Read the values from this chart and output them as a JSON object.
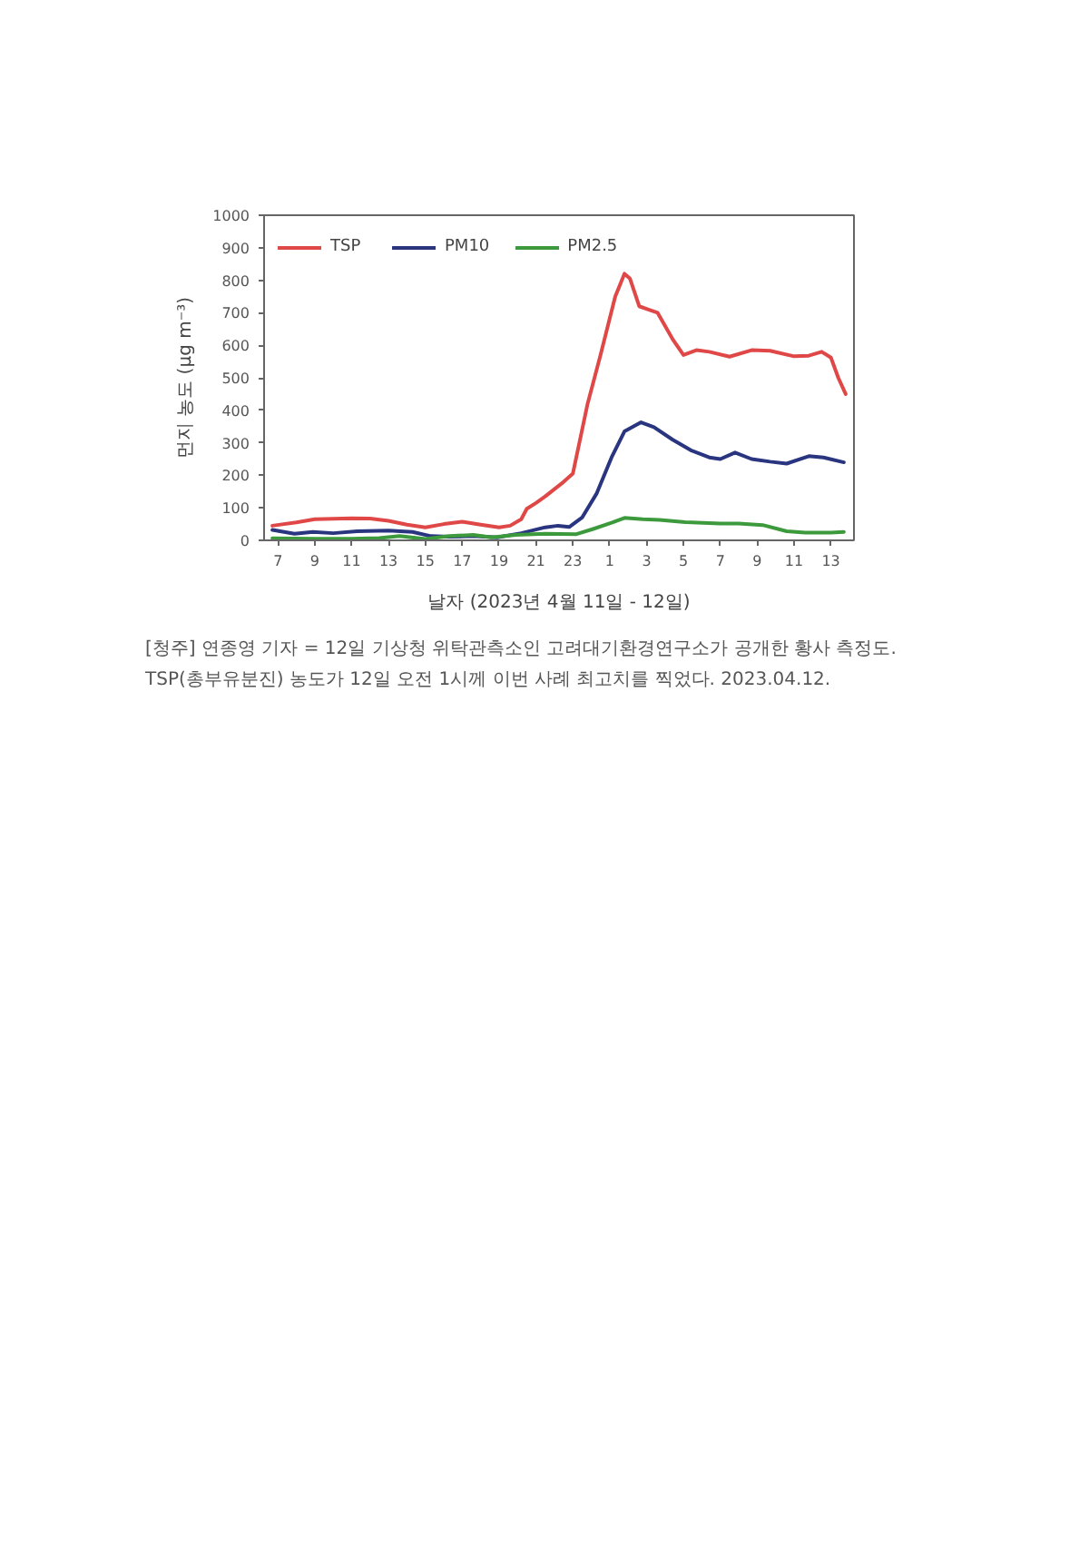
{
  "chart_data": {
    "type": "line",
    "xlabel": "날자 (2023년 4월 11일 - 12일)",
    "ylabel": "먼지 농도 (μg m⁻³)",
    "xlim": [
      "2023-04-11T06:15",
      "2023-04-12T14:15"
    ],
    "ylim": [
      0,
      1000
    ],
    "xticks": [
      {
        "value": "2023-04-11T07:00",
        "label": "7"
      },
      {
        "value": "2023-04-11T09:00",
        "label": "9"
      },
      {
        "value": "2023-04-11T11:00",
        "label": "11"
      },
      {
        "value": "2023-04-11T13:00",
        "label": "13"
      },
      {
        "value": "2023-04-11T15:00",
        "label": "15"
      },
      {
        "value": "2023-04-11T17:00",
        "label": "17"
      },
      {
        "value": "2023-04-11T19:00",
        "label": "19"
      },
      {
        "value": "2023-04-11T21:00",
        "label": "21"
      },
      {
        "value": "2023-04-11T23:00",
        "label": "23"
      },
      {
        "value": "2023-04-12T01:00",
        "label": "1"
      },
      {
        "value": "2023-04-12T03:00",
        "label": "3"
      },
      {
        "value": "2023-04-12T05:00",
        "label": "5"
      },
      {
        "value": "2023-04-12T07:00",
        "label": "7"
      },
      {
        "value": "2023-04-12T09:00",
        "label": "9"
      },
      {
        "value": "2023-04-12T11:00",
        "label": "11"
      },
      {
        "value": "2023-04-12T13:00",
        "label": "13"
      }
    ],
    "yticks": [
      0,
      100,
      200,
      300,
      400,
      500,
      600,
      700,
      800,
      900,
      1000
    ],
    "legend": "top left",
    "series": [
      {
        "name": "TSP",
        "color": "#e04848",
        "x": [
          "2023-04-11T06:42",
          "2023-04-11T08:00",
          "2023-04-11T09:00",
          "2023-04-11T11:00",
          "2023-04-11T12:00",
          "2023-04-11T13:00",
          "2023-04-11T14:00",
          "2023-04-11T15:00",
          "2023-04-11T16:00",
          "2023-04-11T17:00",
          "2023-04-11T18:00",
          "2023-04-11T19:00",
          "2023-04-11T19:36",
          "2023-04-11T20:12",
          "2023-04-11T20:30",
          "2023-04-11T21:00",
          "2023-04-11T21:30",
          "2023-04-11T22:30",
          "2023-04-11T23:00",
          "2023-04-11T23:48",
          "2023-04-12T00:30",
          "2023-04-12T01:18",
          "2023-04-12T01:48",
          "2023-04-12T02:06",
          "2023-04-12T02:36",
          "2023-04-12T03:06",
          "2023-04-12T03:36",
          "2023-04-12T04:24",
          "2023-04-12T05:00",
          "2023-04-12T05:42",
          "2023-04-12T06:24",
          "2023-04-12T07:30",
          "2023-04-12T08:42",
          "2023-04-12T09:42",
          "2023-04-12T11:00",
          "2023-04-12T11:48",
          "2023-04-12T12:30",
          "2023-04-12T13:00",
          "2023-04-12T13:24",
          "2023-04-12T13:48"
        ],
        "values": [
          45,
          55,
          65,
          68,
          67,
          60,
          48,
          40,
          50,
          57,
          48,
          40,
          45,
          65,
          97,
          115,
          135,
          180,
          205,
          420,
          570,
          750,
          820,
          805,
          720,
          710,
          700,
          620,
          570,
          585,
          580,
          565,
          585,
          583,
          566,
          568,
          580,
          562,
          500,
          450
        ]
      },
      {
        "name": "PM10",
        "color": "#2a3580",
        "x": [
          "2023-04-11T06:42",
          "2023-04-11T07:54",
          "2023-04-11T08:54",
          "2023-04-11T10:00",
          "2023-04-11T11:18",
          "2023-04-11T13:00",
          "2023-04-11T14:18",
          "2023-04-11T15:18",
          "2023-04-11T16:18",
          "2023-04-11T17:36",
          "2023-04-11T18:54",
          "2023-04-11T20:12",
          "2023-04-11T21:30",
          "2023-04-11T22:12",
          "2023-04-11T22:48",
          "2023-04-11T23:30",
          "2023-04-12T00:18",
          "2023-04-12T01:06",
          "2023-04-12T01:48",
          "2023-04-12T02:42",
          "2023-04-12T03:24",
          "2023-04-12T04:24",
          "2023-04-12T05:24",
          "2023-04-12T06:24",
          "2023-04-12T07:00",
          "2023-04-12T07:48",
          "2023-04-12T08:42",
          "2023-04-12T09:42",
          "2023-04-12T10:36",
          "2023-04-12T11:48",
          "2023-04-12T12:36",
          "2023-04-12T13:42"
        ],
        "values": [
          32,
          20,
          26,
          22,
          28,
          30,
          26,
          13,
          11,
          13,
          9,
          22,
          40,
          45,
          41,
          70,
          145,
          255,
          335,
          363,
          348,
          310,
          277,
          255,
          250,
          270,
          250,
          242,
          236,
          259,
          255,
          240
        ]
      },
      {
        "name": "PM2.5",
        "color": "#3c9a3c",
        "x": [
          "2023-04-11T06:42",
          "2023-04-11T09:00",
          "2023-04-11T11:00",
          "2023-04-11T12:30",
          "2023-04-11T13:36",
          "2023-04-11T15:00",
          "2023-04-11T16:18",
          "2023-04-11T17:36",
          "2023-04-11T18:36",
          "2023-04-11T19:54",
          "2023-04-11T21:30",
          "2023-04-11T23:12",
          "2023-04-12T00:06",
          "2023-04-12T01:06",
          "2023-04-12T01:48",
          "2023-04-12T02:48",
          "2023-04-12T03:42",
          "2023-04-12T05:06",
          "2023-04-12T07:00",
          "2023-04-12T08:00",
          "2023-04-12T09:18",
          "2023-04-12T10:36",
          "2023-04-12T11:36",
          "2023-04-12T13:00",
          "2023-04-12T13:42"
        ],
        "values": [
          6,
          5,
          5,
          7,
          13,
          4,
          13,
          17,
          9,
          17,
          20,
          19,
          35,
          54,
          69,
          65,
          63,
          56,
          52,
          52,
          47,
          28,
          24,
          24,
          26
        ]
      }
    ],
    "annotations": [
      "[청주] 연종영 기자 = 12일 기상청 위탁관측소인 고려대기환경연구소가 공개한 황사 측정도. TSP(총부유분진) 농도가 12일 오전 1시께 이번 사례 최고치를 찍었다. 2023.04.12."
    ]
  }
}
